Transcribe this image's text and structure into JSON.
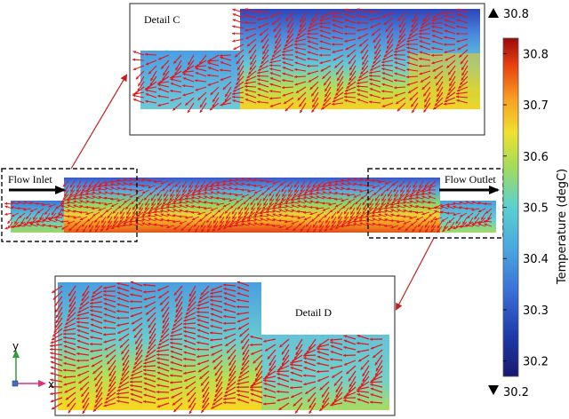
{
  "colorbar": {
    "max_marker": "30.8",
    "min_marker": "30.2",
    "title": "Temperature (degC)",
    "ticks": [
      "30.8",
      "30.7",
      "30.6",
      "30.5",
      "30.4",
      "30.3",
      "30.2"
    ],
    "tick_values": [
      30.8,
      30.7,
      30.6,
      30.5,
      30.4,
      30.3,
      30.2
    ],
    "range": [
      30.17,
      30.83
    ]
  },
  "labels": {
    "detail_c": "Detail C",
    "detail_d": "Detail D",
    "flow_inlet": "Flow Inlet",
    "flow_outlet": "Flow Outlet"
  },
  "axes": {
    "x": "x",
    "y": "y"
  },
  "colors": {
    "arrow": "#e8141a",
    "leader": "#c41e1e",
    "axis_x": "#e0307a",
    "axis_y": "#2e9e3a",
    "colormap": [
      "#191970",
      "#1e3aa8",
      "#3a6fd8",
      "#4ba8e0",
      "#5ad0d0",
      "#a4dc5a",
      "#f0e030",
      "#f8a020",
      "#e84010",
      "#9a0a0a"
    ]
  }
}
